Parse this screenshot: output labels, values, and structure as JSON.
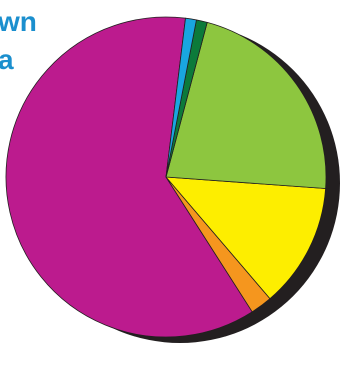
{
  "title_lines": [
    "wn",
    "a"
  ],
  "chart_data": {
    "type": "pie",
    "title": "wn a",
    "start_angle_deg": 7,
    "direction": "counterclockwise",
    "slices": [
      {
        "value": 61.0,
        "color": "#bc1b8e"
      },
      {
        "value": 2.2,
        "color": "#f5961e"
      },
      {
        "value": 12.6,
        "color": "#fdee00"
      },
      {
        "value": 22.0,
        "color": "#8dc63f"
      },
      {
        "value": 1.1,
        "color": "#0c7a3a"
      },
      {
        "value": 1.1,
        "color": "#19a6e0"
      }
    ],
    "shadow_color": "#231f20",
    "edge_color": "#231f20"
  }
}
